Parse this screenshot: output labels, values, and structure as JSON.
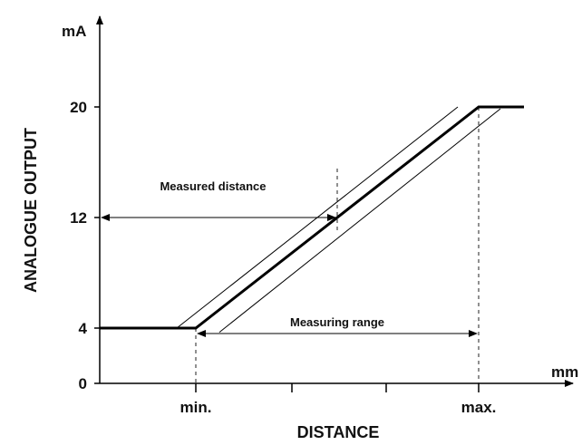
{
  "chart_data": {
    "type": "line",
    "ylabel": "ANALOGUE OUTPUT",
    "xlabel": "DISTANCE",
    "y_unit": "mA",
    "x_unit": "mm",
    "y_ticks": [
      0,
      4,
      12,
      20
    ],
    "x_tick_labels": [
      "min.",
      "max."
    ],
    "ylim": [
      0,
      22
    ],
    "x_points": [
      "start",
      "min.",
      "max.",
      "end"
    ],
    "series": [
      {
        "style": "bold",
        "points": [
          {
            "x": "start",
            "y": 4
          },
          {
            "x": "min.",
            "y": 4
          },
          {
            "x": "max.",
            "y": 20
          },
          {
            "x": "end",
            "y": 20
          }
        ]
      }
    ],
    "tolerance_lines": 2,
    "annotations": [
      {
        "text": "Measured distance",
        "y": 12
      },
      {
        "text": "Measuring range",
        "from": "min.",
        "to": "max."
      }
    ],
    "colors": {
      "line": "#000000",
      "axis": "#000000"
    }
  }
}
